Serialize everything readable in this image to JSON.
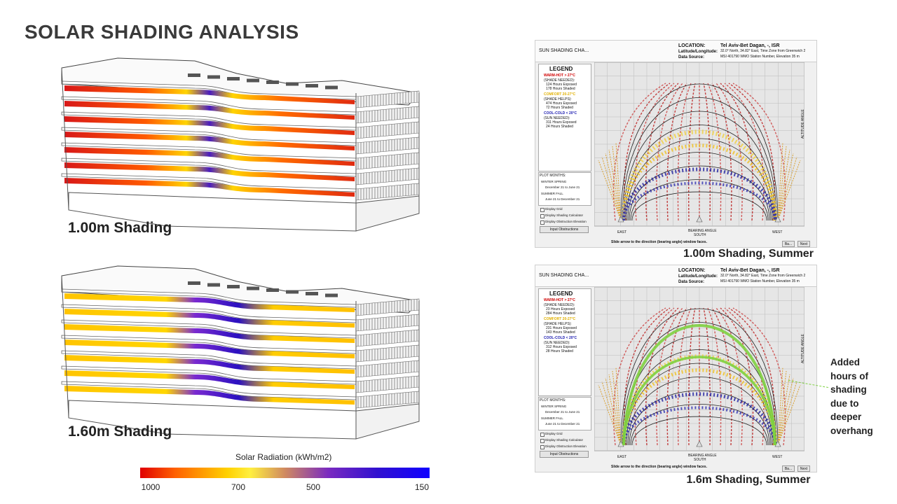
{
  "title": "SOLAR SHADING ANALYSIS",
  "models": [
    {
      "label": "1.00m Shading"
    },
    {
      "label": "1.60m Shading"
    }
  ],
  "colorbar": {
    "title": "Solar Radiation (kWh/m2)",
    "ticks": [
      1000,
      700,
      500,
      150
    ]
  },
  "charts": [
    {
      "caption": "1.00m Shading, Summer",
      "app": {
        "window_title": "SUN SHADING CHA...",
        "location_label": "LOCATION:",
        "location": "Tel Aviv-Bet Dagan, -, ISR",
        "latlon_label": "Latitude/Longitude:",
        "latlon": "32.0° North, 34.82° East, Time Zone from Greenwich 2",
        "source_label": "Data Source:",
        "source": "MSI   401790 WMO Station Number, Elevation 35 m",
        "legend_title": "LEGEND",
        "legend": [
          {
            "heading": "WARM-HOT > 27°C",
            "sub": "(SHADE NEEDED):",
            "exposed": "124 Hours Exposed",
            "shaded": "178 Hours Shaded"
          },
          {
            "heading": "COMFORT 20-27°C",
            "sub": "(SHADE HELPS):",
            "exposed": "474 Hours Exposed",
            "shaded": "72 Hours Shaded"
          },
          {
            "heading": "COOL-COLD < 20°C",
            "sub": "(SUN NEEDED):",
            "exposed": "311 Hours Exposed",
            "shaded": "24 Hours Shaded"
          }
        ],
        "plot_months": "PLOT MONTHS:",
        "season1": "WINTER SPRING",
        "range1": "December 21 to June 21",
        "season2": "SUMMER FALL",
        "range2": "June 21 to December 21",
        "checks": [
          "Display Grid",
          "Display Shading Calculator",
          "Display Obstruction Elevation"
        ],
        "button": "Input Obstructions",
        "east": "EAST",
        "south": "SOUTH",
        "west": "WEST",
        "bearing": "BEARING ANGLE",
        "altitude": "ALTITUDE ANGLE",
        "footer": "Slide arrow to the direction (bearing angle) window faces.",
        "back": "Ba...",
        "next": "Next"
      }
    },
    {
      "caption": "1.6m Shading, Summer",
      "app": {
        "window_title": "SUN SHADING CHA...",
        "location_label": "LOCATION:",
        "location": "Tel Aviv-Bet Dagan, -, ISR",
        "latlon_label": "Latitude/Longitude:",
        "latlon": "32.0° North, 34.82° East, Time Zone from Greenwich 2",
        "source_label": "Data Source:",
        "source": "MSI   401790 WMO Station Number, Elevation 35 m",
        "legend_title": "LEGEND",
        "legend": [
          {
            "heading": "WARM-HOT > 27°C",
            "sub": "(SHADE NEEDED):",
            "exposed": "23 Hours Exposed",
            "shaded": "284 Hours Shaded"
          },
          {
            "heading": "COMFORT 20-27°C",
            "sub": "(SHADE HELPS):",
            "exposed": "231 Hours Exposed",
            "shaded": "143 Hours Shaded"
          },
          {
            "heading": "COOL-COLD < 20°C",
            "sub": "(SUN NEEDED):",
            "exposed": "312 Hours Exposed",
            "shaded": "28 Hours Shaded"
          }
        ],
        "plot_months": "PLOT MONTHS:",
        "season1": "WINTER SPRING",
        "range1": "December 21 to June 21",
        "season2": "SUMMER FALL",
        "range2": "June 21 to December 21",
        "checks": [
          "Display Grid",
          "Display Shading Calculator",
          "Display Obstruction Elevation"
        ],
        "button": "Input Obstructions",
        "east": "EAST",
        "south": "SOUTH",
        "west": "WEST",
        "bearing": "BEARING ANGLE",
        "altitude": "ALTITUDE ANGLE",
        "footer": "Slide arrow to the direction (bearing angle) window faces.",
        "back": "Ba...",
        "next": "Next"
      }
    }
  ],
  "annotation": "Added hours of shading due to deeper overhang"
}
